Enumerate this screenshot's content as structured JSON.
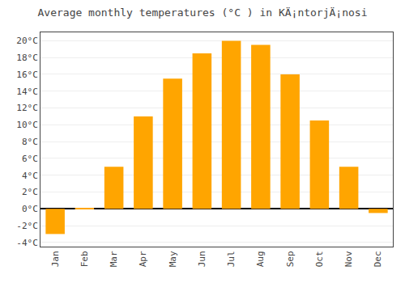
{
  "chart_data": {
    "type": "bar",
    "title": "Average monthly temperatures (°C ) in KÄ¡ntorjÄ¡nosi",
    "categories": [
      "Jan",
      "Feb",
      "Mar",
      "Apr",
      "May",
      "Jun",
      "Jul",
      "Aug",
      "Sep",
      "Oct",
      "Nov",
      "Dec"
    ],
    "values": [
      -3.0,
      0.1,
      5.0,
      11.0,
      15.5,
      18.5,
      20.0,
      19.5,
      16.0,
      10.5,
      5.0,
      -0.5
    ],
    "color": "#FFA500",
    "ylim": [
      -4.5,
      21.0
    ],
    "yticks": [
      {
        "value": -4,
        "label": "-4°C"
      },
      {
        "value": -2,
        "label": "-2°C"
      },
      {
        "value": 0,
        "label": "0°C"
      },
      {
        "value": 2,
        "label": "2°C"
      },
      {
        "value": 4,
        "label": "4°C"
      },
      {
        "value": 6,
        "label": "6°C"
      },
      {
        "value": 8,
        "label": "8°C"
      },
      {
        "value": 10,
        "label": "10°C"
      },
      {
        "value": 12,
        "label": "12°C"
      },
      {
        "value": 14,
        "label": "14°C"
      },
      {
        "value": 16,
        "label": "16°C"
      },
      {
        "value": 18,
        "label": "18°C"
      },
      {
        "value": 20,
        "label": "20°C"
      }
    ],
    "grid": true
  }
}
